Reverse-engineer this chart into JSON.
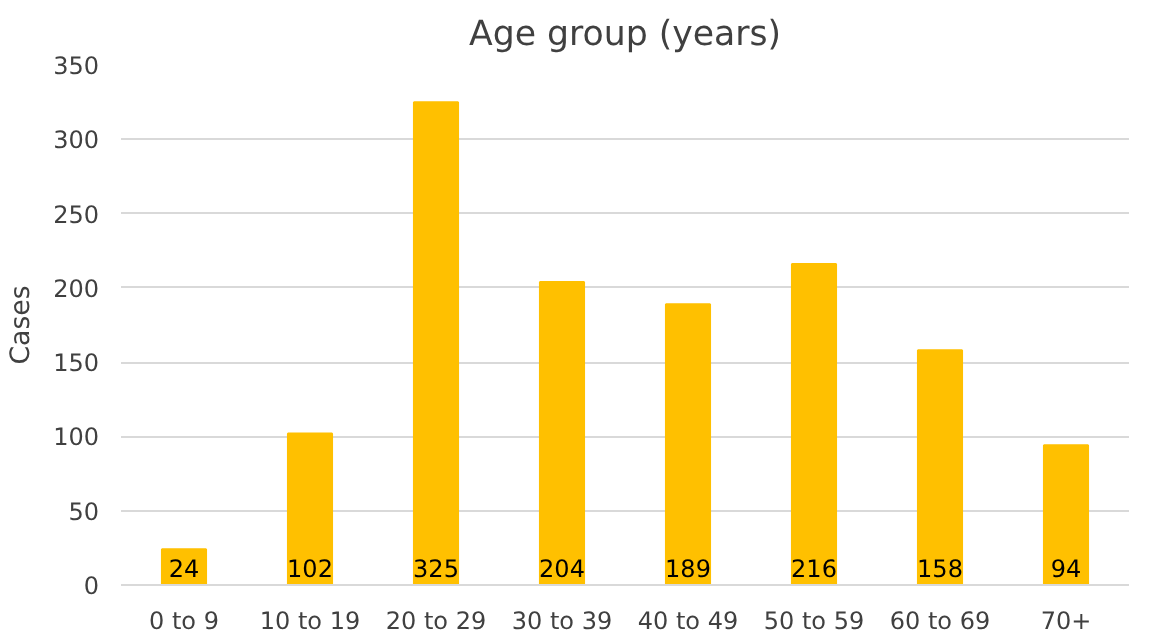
{
  "chart_data": {
    "type": "bar",
    "title": "Age group (years)",
    "ylabel": "Cases",
    "categories": [
      "0 to 9",
      "10 to 19",
      "20 to 29",
      "30 to 39",
      "40 to 49",
      "50 to 59",
      "60 to 69",
      "70+"
    ],
    "values": [
      24,
      102,
      325,
      204,
      189,
      216,
      158,
      94
    ],
    "color": "#ffc000",
    "ylim": [
      0,
      350
    ],
    "yticks": [
      0,
      50,
      100,
      150,
      200,
      250,
      300,
      350
    ],
    "grid": "y",
    "data_labels": true
  }
}
